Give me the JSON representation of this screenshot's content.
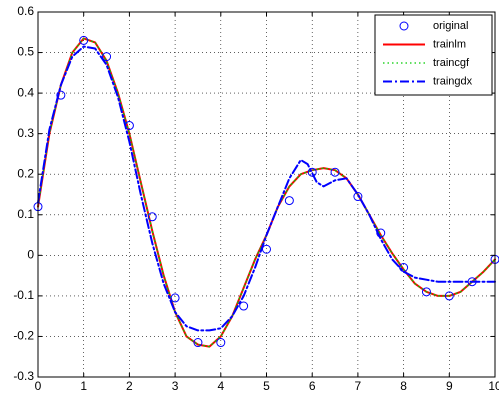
{
  "chart_data": {
    "type": "line",
    "title": "",
    "xlabel": "",
    "ylabel": "",
    "xlim": [
      0,
      10
    ],
    "ylim": [
      -0.3,
      0.6
    ],
    "xticks": [
      "0",
      "1",
      "2",
      "3",
      "4",
      "5",
      "6",
      "7",
      "8",
      "9",
      "10"
    ],
    "yticks": [
      "0.6",
      "0.5",
      "0.4",
      "0.3",
      "0.2",
      "0.1",
      "0",
      "-0.1",
      "-0.2",
      "-0.3"
    ],
    "grid": "dotted",
    "legend_position": "top-right",
    "series": [
      {
        "name": "original",
        "style": "markers",
        "marker": "circle",
        "color": "#0000ff",
        "x": [
          0,
          0.5,
          1,
          1.5,
          2,
          2.5,
          3,
          3.5,
          4,
          4.5,
          5,
          5.5,
          6,
          6.5,
          7,
          7.5,
          8,
          8.5,
          9,
          9.5,
          10
        ],
        "y": [
          0.12,
          0.395,
          0.53,
          0.49,
          0.32,
          0.095,
          -0.105,
          -0.215,
          -0.215,
          -0.125,
          0.015,
          0.135,
          0.205,
          0.205,
          0.145,
          0.055,
          -0.03,
          -0.09,
          -0.1,
          -0.065,
          -0.01
        ]
      },
      {
        "name": "trainlm",
        "style": "solid",
        "color": "#ff0000",
        "x": [
          0,
          0.25,
          0.5,
          0.75,
          1,
          1.25,
          1.5,
          1.75,
          2,
          2.25,
          2.5,
          2.75,
          3,
          3.25,
          3.5,
          3.75,
          4,
          4.25,
          4.5,
          4.75,
          5,
          5.25,
          5.5,
          5.75,
          6,
          6.25,
          6.5,
          6.75,
          7,
          7.25,
          7.5,
          7.75,
          8,
          8.25,
          8.5,
          8.75,
          9,
          9.25,
          9.5,
          9.75,
          10
        ],
        "y": [
          0.12,
          0.3,
          0.42,
          0.5,
          0.535,
          0.525,
          0.48,
          0.4,
          0.3,
          0.18,
          0.06,
          -0.05,
          -0.14,
          -0.2,
          -0.22,
          -0.225,
          -0.2,
          -0.15,
          -0.08,
          -0.01,
          0.05,
          0.12,
          0.17,
          0.2,
          0.21,
          0.215,
          0.21,
          0.19,
          0.15,
          0.1,
          0.05,
          0.005,
          -0.035,
          -0.07,
          -0.09,
          -0.1,
          -0.1,
          -0.09,
          -0.065,
          -0.04,
          -0.01
        ]
      },
      {
        "name": "traincgf",
        "style": "dotted",
        "color": "#00cc00",
        "x": [
          0,
          0.25,
          0.5,
          0.75,
          1,
          1.25,
          1.5,
          1.75,
          2,
          2.25,
          2.5,
          2.75,
          3,
          3.25,
          3.5,
          3.75,
          4,
          4.25,
          4.5,
          4.75,
          5,
          5.25,
          5.5,
          5.75,
          6,
          6.25,
          6.5,
          6.75,
          7,
          7.25,
          7.5,
          7.75,
          8,
          8.25,
          8.5,
          8.75,
          9,
          9.25,
          9.5,
          9.75,
          10
        ],
        "y": [
          0.12,
          0.3,
          0.42,
          0.5,
          0.535,
          0.525,
          0.48,
          0.4,
          0.3,
          0.18,
          0.06,
          -0.05,
          -0.14,
          -0.2,
          -0.22,
          -0.225,
          -0.2,
          -0.15,
          -0.08,
          -0.01,
          0.05,
          0.12,
          0.17,
          0.2,
          0.21,
          0.215,
          0.21,
          0.19,
          0.15,
          0.1,
          0.05,
          0.005,
          -0.035,
          -0.07,
          -0.09,
          -0.1,
          -0.1,
          -0.09,
          -0.065,
          -0.04,
          -0.01
        ]
      },
      {
        "name": "traingdx",
        "style": "dashdot",
        "color": "#0000ff",
        "x": [
          0,
          0.25,
          0.5,
          0.75,
          1,
          1.25,
          1.5,
          1.75,
          2,
          2.25,
          2.5,
          2.75,
          3,
          3.25,
          3.5,
          3.75,
          4,
          4.25,
          4.5,
          4.75,
          5,
          5.25,
          5.5,
          5.75,
          5.9,
          6.1,
          6.25,
          6.5,
          6.75,
          7,
          7.25,
          7.5,
          7.75,
          8,
          8.25,
          8.5,
          8.75,
          9,
          9.25,
          9.5,
          9.75,
          10
        ],
        "y": [
          0.13,
          0.31,
          0.42,
          0.49,
          0.515,
          0.51,
          0.47,
          0.39,
          0.28,
          0.15,
          0.03,
          -0.07,
          -0.14,
          -0.175,
          -0.185,
          -0.185,
          -0.18,
          -0.15,
          -0.1,
          -0.03,
          0.05,
          0.12,
          0.19,
          0.235,
          0.225,
          0.18,
          0.17,
          0.185,
          0.19,
          0.15,
          0.1,
          0.04,
          -0.01,
          -0.04,
          -0.055,
          -0.06,
          -0.065,
          -0.065,
          -0.065,
          -0.065,
          -0.065,
          -0.065
        ]
      }
    ]
  }
}
